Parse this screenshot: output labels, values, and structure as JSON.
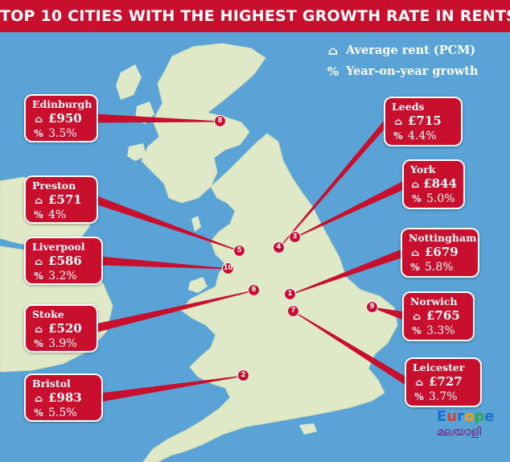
{
  "title": "TOP 10 CITIES WITH THE HIGHEST GROWTH RATE IN RENTS",
  "legend": {
    "rent_icon": "house-icon",
    "rent_label": "Average rent (PCM)",
    "growth_icon_glyph": "%",
    "growth_label": "Year-on-year growth"
  },
  "colors": {
    "sea": "#5aa3d6",
    "land": "#dfe9c8",
    "accent": "#c8102e",
    "white": "#ffffff"
  },
  "cities": [
    {
      "number": "8",
      "name": "Edinburgh",
      "rent": "£950",
      "growth": "3.5%"
    },
    {
      "number": "5",
      "name": "Preston",
      "rent": "£571",
      "growth": "4%"
    },
    {
      "number": "10",
      "name": "Liverpool",
      "rent": "£586",
      "growth": "3.2%"
    },
    {
      "number": "6",
      "name": "Stoke",
      "rent": "£520",
      "growth": "3.9%"
    },
    {
      "number": "2",
      "name": "Bristol",
      "rent": "£983",
      "growth": "5.5%"
    },
    {
      "number": "4",
      "name": "Leeds",
      "rent": "£715",
      "growth": "4.4%"
    },
    {
      "number": "3",
      "name": "York",
      "rent": "£844",
      "growth": "5.0%"
    },
    {
      "number": "1",
      "name": "Nottingham",
      "rent": "£679",
      "growth": "5.8%"
    },
    {
      "number": "9",
      "name": "Norwich",
      "rent": "£765",
      "growth": "3.3%"
    },
    {
      "number": "7",
      "name": "Leicester",
      "rent": "£727",
      "growth": "3.7%"
    }
  ],
  "logo": {
    "text_main": "Europe",
    "text_sub": "മലയാളി"
  }
}
